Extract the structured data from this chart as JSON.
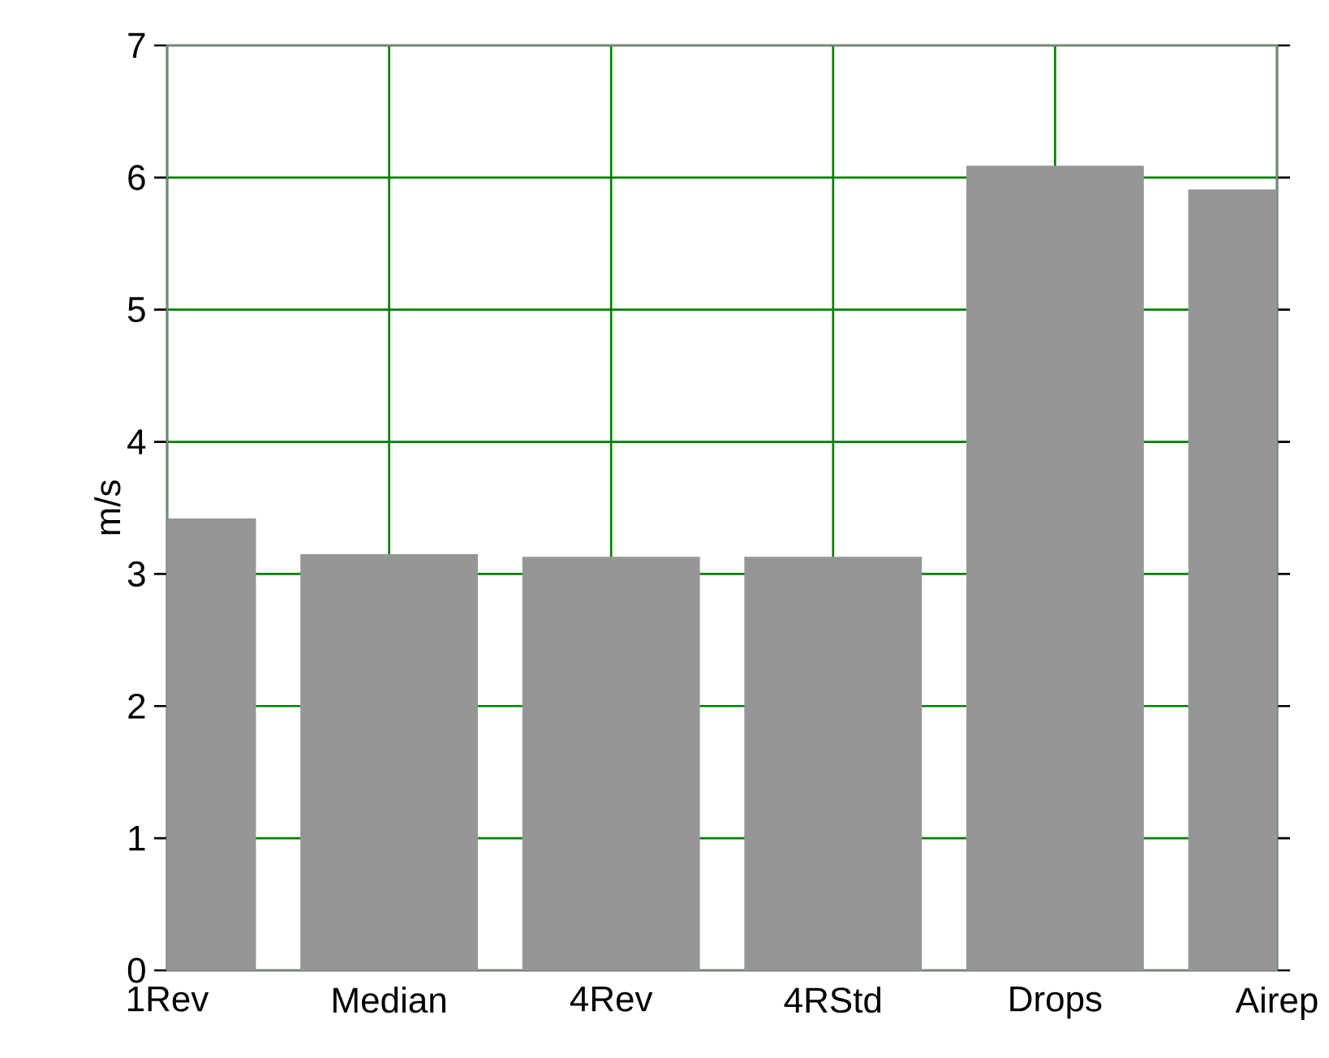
{
  "chart_data": {
    "type": "bar",
    "ylabel": "m/s",
    "categories": [
      "1Rev",
      "Median",
      "4Rev",
      "4RStd",
      "Drops",
      "Airep"
    ],
    "values": [
      3.42,
      3.15,
      3.13,
      3.13,
      6.09,
      5.91
    ],
    "color": "#969696",
    "ylim": [
      0,
      7
    ],
    "yticks": [
      0,
      1,
      2,
      3,
      4,
      5,
      6,
      7
    ],
    "grid": true
  }
}
